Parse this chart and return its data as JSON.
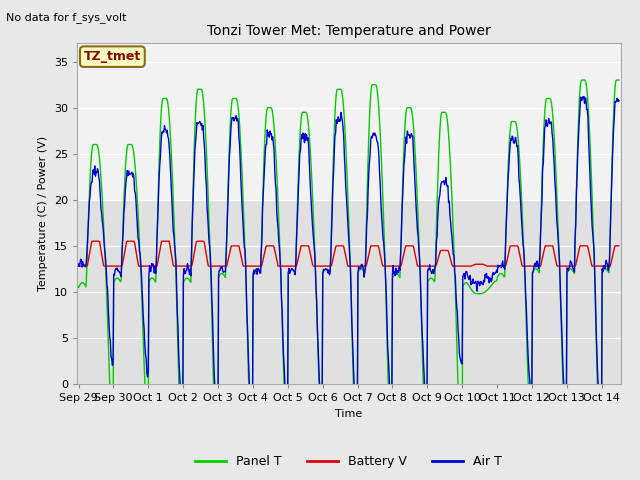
{
  "title": "Tonzi Tower Met: Temperature and Power",
  "no_data_text": "No data for f_sys_volt",
  "ylabel": "Temperature (C) / Power (V)",
  "xlabel": "Time",
  "annotation_label": "TZ_tmet",
  "ylim": [
    0,
    37
  ],
  "yticks": [
    0,
    5,
    10,
    15,
    20,
    25,
    30,
    35
  ],
  "line_green": "#00cc00",
  "line_red": "#dd0000",
  "line_blue": "#0000dd",
  "upper_band_color": "#f2f2f2",
  "lower_band_color": "#e0e0e0",
  "fig_bg": "#e8e8e8",
  "tick_labels": [
    "Sep 29",
    "Sep 30",
    "Oct 1",
    "Oct 2",
    "Oct 3",
    "Oct 4",
    "Oct 5",
    "Oct 6",
    "Oct 7",
    "Oct 8",
    "Oct 9",
    "Oct 10",
    "Oct 11",
    "Oct 12",
    "Oct 13",
    "Oct 14"
  ],
  "tick_positions": [
    0,
    1,
    2,
    3,
    4,
    5,
    6,
    7,
    8,
    9,
    10,
    11,
    12,
    13,
    14,
    15
  ],
  "panel_peaks": [
    26.0,
    26.0,
    31.0,
    32.0,
    31.0,
    30.0,
    29.5,
    32.0,
    32.5,
    30.0,
    29.5,
    9.8,
    28.5,
    31.0,
    33.0
  ],
  "air_peaks": [
    23.0,
    23.0,
    27.5,
    28.5,
    29.0,
    27.0,
    27.0,
    29.0,
    27.0,
    27.0,
    22.0,
    11.0,
    26.5,
    28.5,
    31.0
  ],
  "panel_valleys": [
    10.5,
    11.0,
    11.0,
    11.0,
    11.5,
    12.0,
    12.0,
    12.0,
    12.0,
    11.5,
    11.0,
    10.5,
    11.5,
    12.0,
    12.0
  ],
  "air_valleys": [
    12.5,
    12.0,
    12.0,
    12.0,
    12.0,
    12.0,
    12.0,
    12.0,
    12.0,
    12.0,
    12.0,
    11.5,
    12.5,
    12.5,
    12.5
  ],
  "batt_peaks": [
    15.5,
    15.5,
    15.5,
    15.5,
    15.0,
    15.0,
    15.0,
    15.0,
    15.0,
    15.0,
    14.5,
    13.0,
    15.0,
    15.0,
    15.0
  ],
  "batt_base": 12.8
}
